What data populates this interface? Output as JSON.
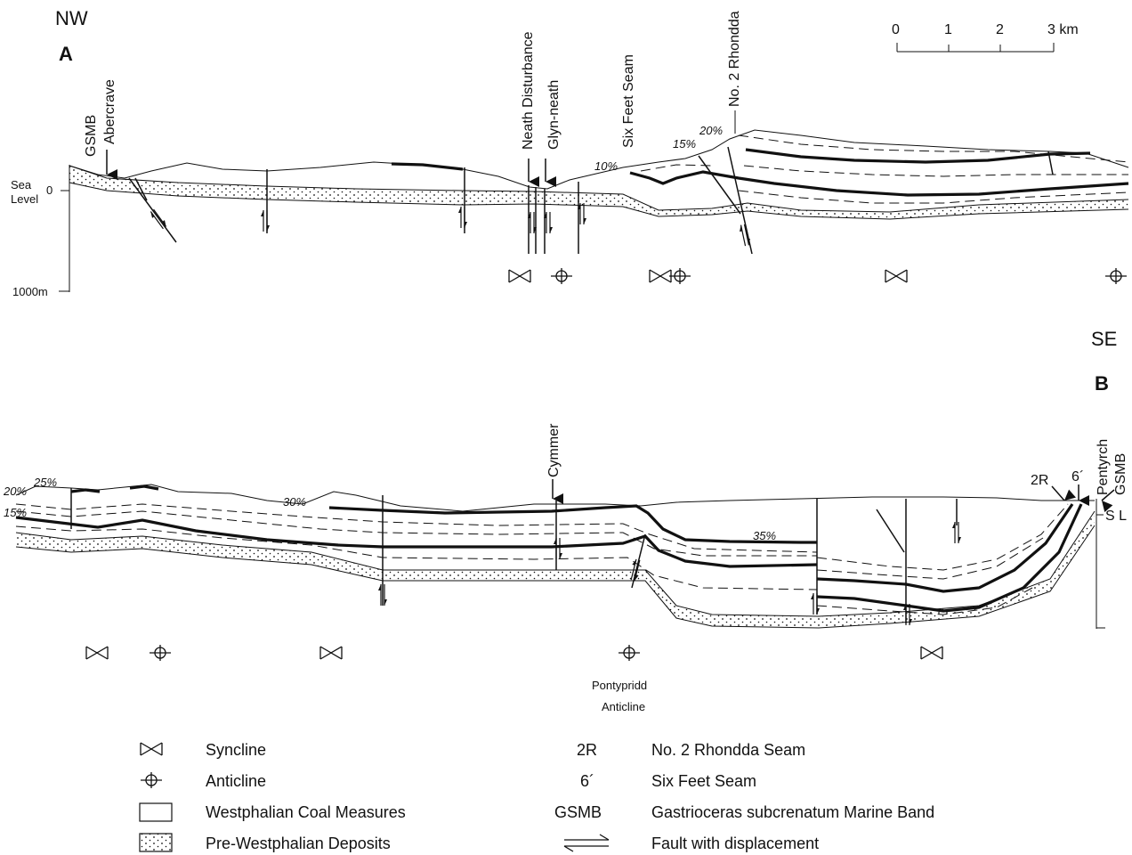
{
  "orientation": {
    "nw": "NW",
    "se": "SE"
  },
  "sections": {
    "a": {
      "label": "A",
      "vertical_scale": {
        "sea": "Sea",
        "level": "Level",
        "zero": "0",
        "depth": "1000m"
      },
      "place_labels": [
        "GSMB",
        "Abercrave",
        "Neath Disturbance",
        "Glyn-neath",
        "Six Feet Seam",
        "No. 2 Rhondda"
      ],
      "dips": [
        "10%",
        "15%",
        "20%"
      ]
    },
    "b": {
      "label": "B",
      "place_labels": [
        "Cymmer",
        "2R",
        "6´",
        "Pentyrch",
        "GSMB"
      ],
      "dips": [
        "25%",
        "20%",
        "15%",
        "30%",
        "35%"
      ],
      "sea_level": "S L",
      "anticline_name_1": "Pontypridd",
      "anticline_name_2": "Anticline"
    }
  },
  "scale_bar": {
    "ticks": [
      "0",
      "1",
      "2",
      "3 km"
    ]
  },
  "legend": {
    "left": [
      {
        "key": "syncline",
        "label": "Syncline"
      },
      {
        "key": "anticline",
        "label": "Anticline"
      },
      {
        "key": "coal-measures",
        "label": "Westphalian Coal Measures"
      },
      {
        "key": "pre-westphalian",
        "label": "Pre-Westphalian Deposits"
      }
    ],
    "right": [
      {
        "abbr": "2R",
        "label": "No. 2 Rhondda Seam"
      },
      {
        "abbr": "6´",
        "label": "Six Feet Seam"
      },
      {
        "abbr": "GSMB",
        "label": "Gastrioceras subcrenatum Marine Band"
      },
      {
        "abbr": "",
        "label": "Fault with displacement"
      }
    ]
  },
  "colors": {
    "ink": "#111111",
    "paper": "#ffffff"
  }
}
